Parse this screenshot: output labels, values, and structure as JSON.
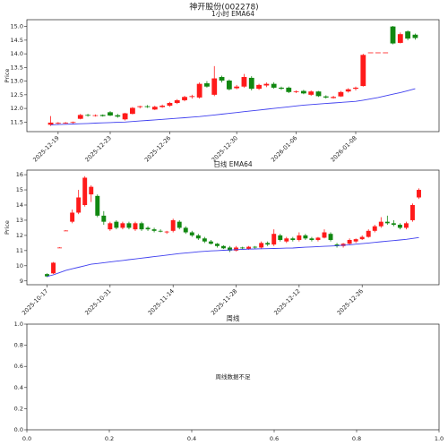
{
  "title": "神开股份(002278)",
  "chart_data": [
    {
      "type": "candlestick",
      "title": "1小时 EMA64",
      "ylabel": "Price",
      "up_color": "#ff1a1a",
      "down_color": "#118811",
      "line_color": "#3f3fef",
      "ylim": [
        11.15,
        15.25
      ],
      "yticks": [
        11.5,
        {
          "value": 12,
          "label": "12.0"
        },
        12.5,
        {
          "value": 13,
          "label": "13.0"
        },
        13.5,
        {
          "value": 14,
          "label": "14.0"
        },
        14.5,
        {
          "value": 15,
          "label": "15.0"
        }
      ],
      "categories": [
        null,
        "2025-12-19",
        null,
        null,
        null,
        null,
        null,
        null,
        "2025-12-23",
        null,
        null,
        null,
        null,
        null,
        null,
        null,
        "2025-12-26",
        null,
        null,
        null,
        null,
        null,
        null,
        null,
        null,
        "2025-12-30",
        null,
        null,
        null,
        null,
        null,
        null,
        null,
        "2026-01-06",
        null,
        null,
        null,
        null,
        null,
        null,
        null,
        "2026-01-08",
        null,
        null,
        null,
        null,
        null,
        null,
        null,
        null
      ],
      "open": [
        11.4,
        11.46,
        11.47,
        11.48,
        11.62,
        11.76,
        11.74,
        11.76,
        11.86,
        11.75,
        11.6,
        11.8,
        12.05,
        12.08,
        11.96,
        12.05,
        12.1,
        12.2,
        12.3,
        12.42,
        12.4,
        12.92,
        12.5,
        13.15,
        13.02,
        12.74,
        12.8,
        13.12,
        12.72,
        12.84,
        12.9,
        12.76,
        12.76,
        12.6,
        12.64,
        12.5,
        12.62,
        12.44,
        12.38,
        12.44,
        12.62,
        12.72,
        12.82,
        14.05,
        14.05,
        14.05,
        15.0,
        14.4,
        14.82,
        14.7
      ],
      "high": [
        11.72,
        11.5,
        11.5,
        11.52,
        11.8,
        11.8,
        11.78,
        11.78,
        11.9,
        11.8,
        11.84,
        12.05,
        12.1,
        12.12,
        12.1,
        12.14,
        12.24,
        12.34,
        12.46,
        12.5,
        12.95,
        13.0,
        13.55,
        13.2,
        13.06,
        12.86,
        13.26,
        13.18,
        12.9,
        12.95,
        12.96,
        12.8,
        12.8,
        12.66,
        12.68,
        12.66,
        12.64,
        12.48,
        12.46,
        12.64,
        12.74,
        12.8,
        14.0,
        14.05,
        14.05,
        14.05,
        15.02,
        14.78,
        14.86,
        14.74
      ],
      "low": [
        11.36,
        11.42,
        11.44,
        11.45,
        11.6,
        11.7,
        11.7,
        11.7,
        11.72,
        11.66,
        11.56,
        11.78,
        12.0,
        12.02,
        11.94,
        12.02,
        12.06,
        12.16,
        12.26,
        12.36,
        12.36,
        12.76,
        12.45,
        12.95,
        12.66,
        12.7,
        12.76,
        12.66,
        12.68,
        12.78,
        12.72,
        12.68,
        12.56,
        12.56,
        12.52,
        12.46,
        12.42,
        12.36,
        12.36,
        12.42,
        12.58,
        12.66,
        12.8,
        14.05,
        14.05,
        14.05,
        14.35,
        14.38,
        14.5,
        14.52
      ],
      "close": [
        11.48,
        11.47,
        11.48,
        11.5,
        11.76,
        11.74,
        11.75,
        11.72,
        11.74,
        11.7,
        11.82,
        12.02,
        12.08,
        12.05,
        12.06,
        12.1,
        12.2,
        12.3,
        12.42,
        12.45,
        12.9,
        12.8,
        13.1,
        13.02,
        12.7,
        12.8,
        13.15,
        12.72,
        12.86,
        12.9,
        12.76,
        12.72,
        12.6,
        12.62,
        12.55,
        12.62,
        12.45,
        12.4,
        12.42,
        12.6,
        12.7,
        12.76,
        13.96,
        14.05,
        14.05,
        14.05,
        14.38,
        14.72,
        14.56,
        14.58
      ],
      "ema": [
        11.4,
        11.41,
        11.42,
        11.43,
        11.44,
        11.45,
        11.46,
        11.47,
        11.48,
        11.49,
        11.5,
        11.52,
        11.54,
        11.56,
        11.58,
        11.6,
        11.62,
        11.64,
        11.66,
        11.68,
        11.7,
        11.73,
        11.76,
        11.79,
        11.82,
        11.85,
        11.88,
        11.91,
        11.94,
        11.97,
        12.0,
        12.03,
        12.06,
        12.09,
        12.12,
        12.14,
        12.16,
        12.18,
        12.2,
        12.22,
        12.24,
        12.26,
        12.3,
        12.35,
        12.4,
        12.46,
        12.52,
        12.58,
        12.65,
        12.72
      ]
    },
    {
      "type": "candlestick",
      "title": "日线 EMA64",
      "ylabel": "Price",
      "up_color": "#ff1a1a",
      "down_color": "#118811",
      "line_color": "#3f3fef",
      "ylim": [
        8.75,
        16.3
      ],
      "yticks": [
        9,
        10,
        11,
        12,
        13,
        14,
        15,
        16
      ],
      "categories": [
        "2025-10-17",
        null,
        null,
        null,
        null,
        null,
        null,
        null,
        null,
        null,
        "2025-10-31",
        null,
        null,
        null,
        null,
        null,
        null,
        null,
        null,
        null,
        "2025-11-14",
        null,
        null,
        null,
        null,
        null,
        null,
        null,
        null,
        null,
        "2025-11-28",
        null,
        null,
        null,
        null,
        null,
        null,
        null,
        null,
        null,
        "2025-12-12",
        null,
        null,
        null,
        null,
        null,
        null,
        null,
        null,
        null,
        "2025-12-26",
        null,
        null,
        null,
        null,
        null,
        null,
        null,
        null,
        null
      ],
      "open": [
        9.45,
        9.5,
        11.2,
        12.32,
        12.9,
        13.5,
        14.0,
        14.7,
        14.6,
        13.3,
        12.4,
        12.9,
        12.5,
        12.8,
        12.4,
        12.8,
        12.5,
        12.4,
        12.3,
        12.2,
        12.3,
        12.9,
        12.5,
        12.2,
        12.0,
        11.8,
        11.6,
        11.45,
        11.3,
        11.2,
        11.0,
        11.2,
        11.1,
        11.25,
        11.2,
        11.5,
        11.4,
        12.0,
        11.6,
        11.8,
        11.7,
        12.0,
        11.8,
        11.7,
        11.85,
        12.1,
        11.4,
        11.3,
        11.45,
        11.6,
        11.75,
        11.9,
        12.3,
        12.6,
        12.9,
        12.8,
        12.7,
        12.5,
        13.0,
        14.5
      ],
      "high": [
        9.5,
        10.25,
        11.22,
        12.34,
        13.7,
        15.0,
        15.9,
        15.3,
        14.7,
        13.6,
        12.9,
        13.0,
        12.9,
        12.9,
        12.9,
        12.9,
        12.6,
        12.5,
        12.4,
        12.3,
        13.1,
        13.0,
        12.6,
        12.3,
        12.1,
        11.9,
        11.7,
        11.5,
        11.35,
        11.3,
        11.3,
        11.25,
        11.3,
        11.3,
        11.6,
        11.6,
        12.4,
        12.1,
        11.9,
        11.9,
        12.2,
        12.1,
        11.9,
        11.9,
        12.4,
        12.2,
        11.5,
        11.5,
        11.8,
        11.8,
        12.0,
        12.4,
        12.7,
        13.2,
        13.3,
        13.0,
        12.8,
        12.9,
        14.1,
        15.1
      ],
      "low": [
        9.25,
        9.45,
        11.18,
        12.3,
        12.8,
        13.4,
        13.9,
        14.2,
        13.2,
        12.7,
        12.3,
        12.4,
        12.4,
        12.4,
        12.3,
        12.3,
        12.3,
        12.2,
        12.2,
        12.1,
        12.2,
        12.4,
        12.1,
        11.9,
        11.7,
        11.5,
        11.4,
        11.2,
        11.1,
        10.9,
        10.95,
        11.1,
        11.05,
        11.1,
        11.1,
        11.3,
        11.3,
        11.6,
        11.5,
        11.6,
        11.6,
        11.7,
        11.6,
        11.6,
        11.8,
        11.6,
        11.2,
        11.2,
        11.4,
        11.5,
        11.7,
        11.85,
        12.2,
        12.5,
        12.7,
        12.6,
        12.4,
        12.4,
        12.9,
        14.4
      ],
      "close": [
        9.3,
        10.2,
        11.2,
        12.32,
        13.5,
        14.5,
        15.8,
        15.2,
        13.3,
        12.9,
        12.8,
        12.5,
        12.8,
        12.5,
        12.8,
        12.4,
        12.4,
        12.3,
        12.25,
        12.25,
        13.0,
        12.5,
        12.2,
        12.0,
        11.8,
        11.6,
        11.45,
        11.3,
        11.15,
        11.0,
        11.2,
        11.15,
        11.25,
        11.2,
        11.5,
        11.4,
        12.1,
        11.7,
        11.8,
        11.7,
        12.0,
        11.8,
        11.7,
        11.85,
        12.2,
        11.7,
        11.3,
        11.45,
        11.7,
        11.75,
        11.9,
        12.3,
        12.6,
        12.9,
        12.8,
        12.7,
        12.5,
        12.8,
        14.0,
        15.0
      ],
      "ema": [
        9.3,
        9.4,
        9.55,
        9.7,
        9.8,
        9.9,
        10.0,
        10.1,
        10.15,
        10.2,
        10.25,
        10.3,
        10.35,
        10.4,
        10.45,
        10.5,
        10.55,
        10.6,
        10.65,
        10.7,
        10.75,
        10.8,
        10.84,
        10.88,
        10.92,
        10.95,
        10.98,
        11.0,
        11.02,
        11.04,
        11.06,
        11.08,
        11.1,
        11.11,
        11.12,
        11.13,
        11.14,
        11.15,
        11.16,
        11.17,
        11.2,
        11.22,
        11.24,
        11.26,
        11.28,
        11.3,
        11.32,
        11.35,
        11.38,
        11.42,
        11.46,
        11.5,
        11.54,
        11.58,
        11.62,
        11.66,
        11.7,
        11.74,
        11.8,
        11.86
      ]
    },
    {
      "type": "empty",
      "title": "周线",
      "annotation": "周线数据不足",
      "xlim": [
        0,
        1
      ],
      "ylim": [
        0,
        1
      ],
      "xticks": [
        {
          "value": 0,
          "label": "0.0"
        },
        0.2,
        0.4,
        0.6,
        0.8,
        {
          "value": 1,
          "label": "1.0"
        }
      ],
      "yticks": [
        {
          "value": 0,
          "label": "0.0"
        },
        0.2,
        0.4,
        0.6,
        0.8,
        {
          "value": 1,
          "label": "1.0"
        }
      ]
    }
  ]
}
